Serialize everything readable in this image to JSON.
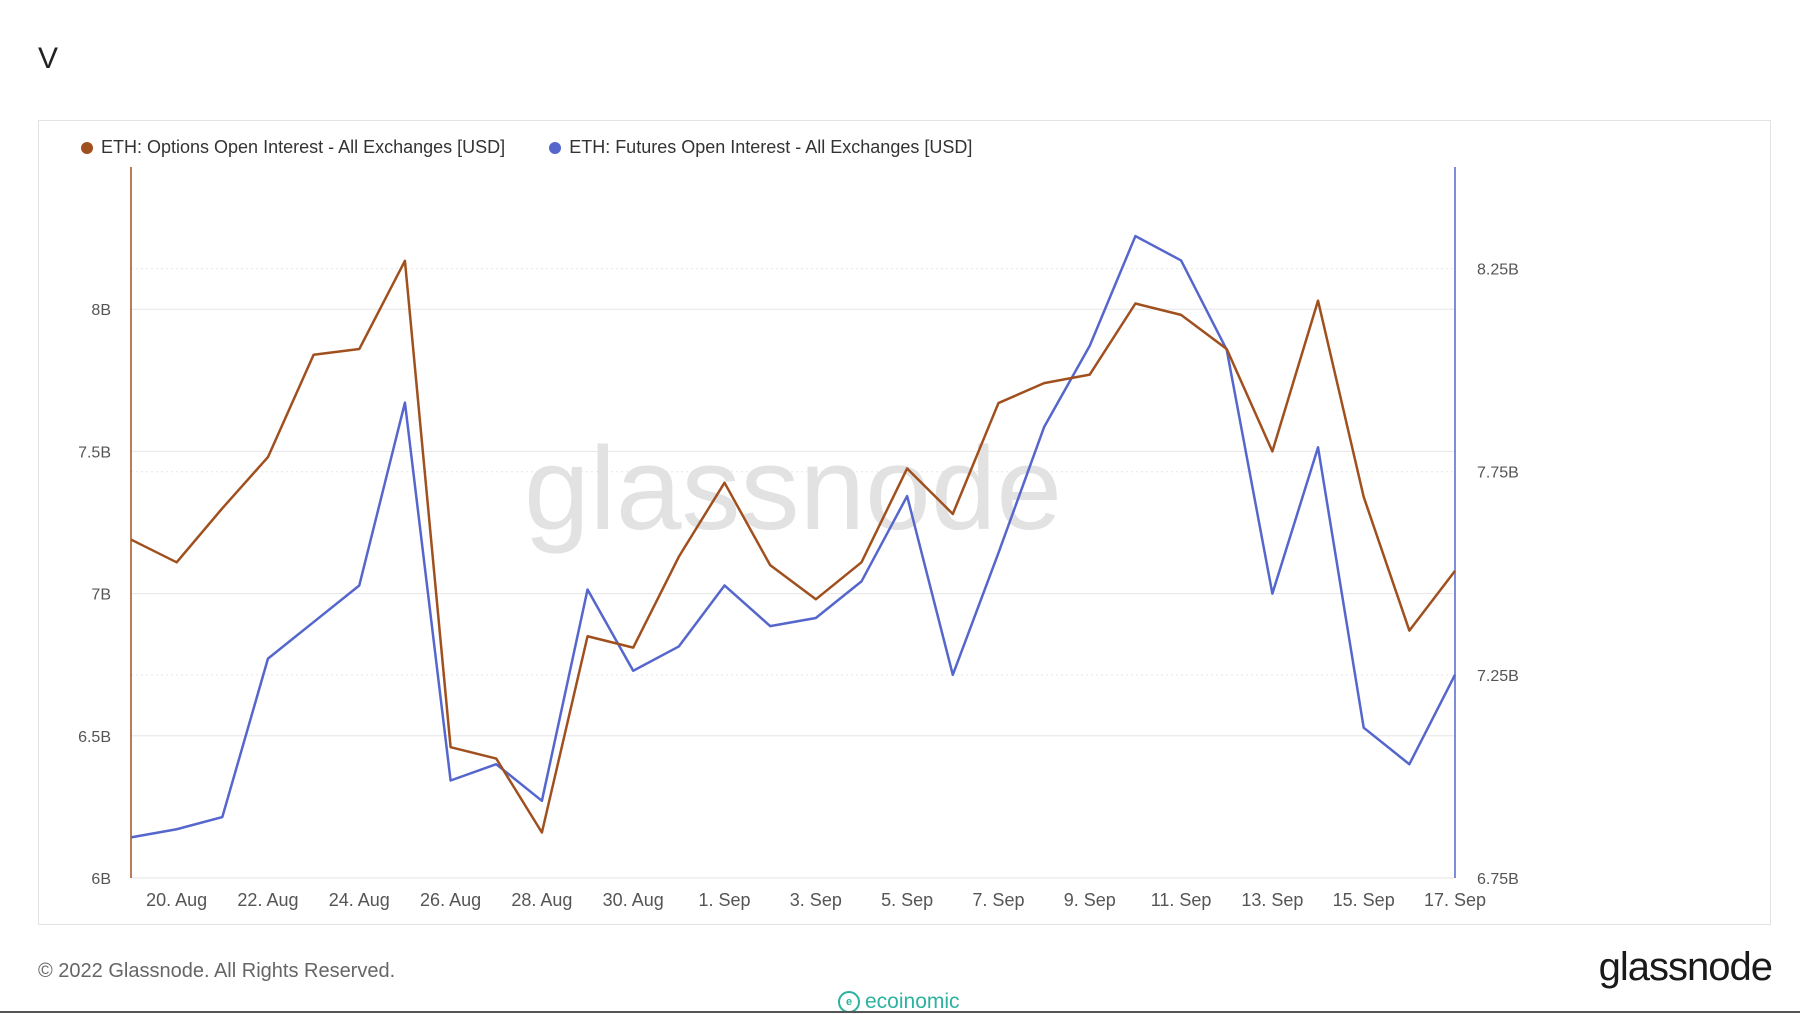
{
  "page": {
    "title": "V",
    "copyright": "© 2022 Glassnode. All Rights Reserved.",
    "brand_logo": "glassnode",
    "watermark": "glassnode",
    "secondary_logo": "ecoinomic"
  },
  "colors": {
    "options_series": "#a0501e",
    "futures_series": "#5566cc",
    "grid": "#e6e6e6",
    "axis_text": "#555555"
  },
  "chart_data": {
    "type": "line",
    "title": "",
    "x": [
      "19. Aug",
      "20. Aug",
      "21. Aug",
      "22. Aug",
      "23. Aug",
      "24. Aug",
      "25. Aug",
      "26. Aug",
      "27. Aug",
      "28. Aug",
      "29. Aug",
      "30. Aug",
      "31. Aug",
      "1. Sep",
      "2. Sep",
      "3. Sep",
      "4. Sep",
      "5. Sep",
      "6. Sep",
      "7. Sep",
      "8. Sep",
      "9. Sep",
      "10. Sep",
      "11. Sep",
      "12. Sep",
      "13. Sep",
      "14. Sep",
      "15. Sep",
      "16. Sep",
      "17. Sep"
    ],
    "x_tick_labels": [
      "20. Aug",
      "22. Aug",
      "24. Aug",
      "26. Aug",
      "28. Aug",
      "30. Aug",
      "1. Sep",
      "3. Sep",
      "5. Sep",
      "7. Sep",
      "9. Sep",
      "11. Sep",
      "13. Sep",
      "15. Sep",
      "17. Sep"
    ],
    "y_left": {
      "label": "",
      "range": [
        6.0,
        8.5
      ],
      "ticks": [
        6,
        6.5,
        7,
        7.5,
        8
      ],
      "tick_labels": [
        "6B",
        "6.5B",
        "7B",
        "7.5B",
        "8B"
      ]
    },
    "y_right": {
      "label": "",
      "range": [
        6.75,
        8.5
      ],
      "ticks": [
        6.75,
        7.25,
        7.75,
        8.25
      ],
      "tick_labels": [
        "6.75B",
        "7.25B",
        "7.75B",
        "8.25B"
      ]
    },
    "grid": true,
    "legend_position": "top-left",
    "series": [
      {
        "name": "ETH: Options Open Interest - All Exchanges [USD]",
        "axis": "left",
        "unit": "B USD",
        "values": [
          7.19,
          7.11,
          7.3,
          7.48,
          7.84,
          7.86,
          8.17,
          6.46,
          6.42,
          6.16,
          6.85,
          6.81,
          7.13,
          7.39,
          7.1,
          6.98,
          7.11,
          7.44,
          7.28,
          7.67,
          7.74,
          7.77,
          8.02,
          7.98,
          7.86,
          7.5,
          8.03,
          7.34,
          6.87,
          7.08
        ]
      },
      {
        "name": "ETH: Futures Open Interest - All Exchanges [USD]",
        "axis": "right",
        "unit": "B USD",
        "values": [
          6.85,
          6.87,
          6.9,
          7.29,
          7.38,
          7.47,
          7.92,
          6.99,
          7.03,
          6.94,
          7.46,
          7.26,
          7.32,
          7.47,
          7.37,
          7.39,
          7.48,
          7.69,
          7.25,
          7.55,
          7.86,
          8.06,
          8.33,
          8.27,
          8.05,
          7.45,
          7.81,
          7.12,
          7.03,
          7.25
        ]
      }
    ]
  }
}
